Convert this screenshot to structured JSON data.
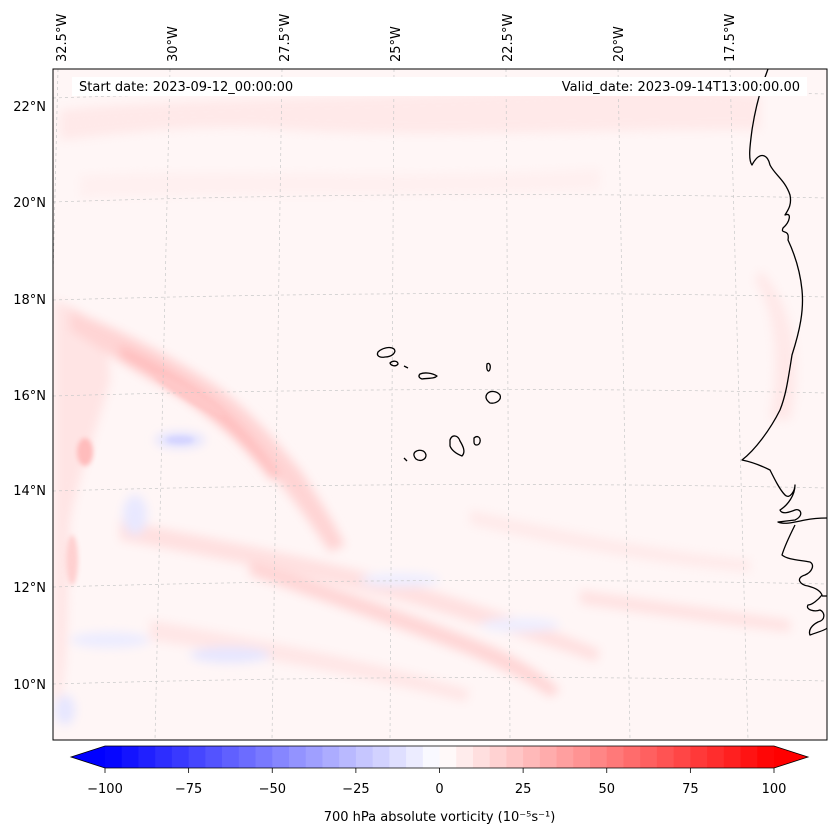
{
  "header": {
    "start_date": "Start date: 2023-09-12_00:00:00",
    "valid_date": "Valid_date: 2023-09-14T13:00:00.00"
  },
  "axes": {
    "lon_labels": [
      "32.5°W",
      "30°W",
      "27.5°W",
      "25°W",
      "22.5°W",
      "20°W",
      "17.5°W"
    ],
    "lat_labels": [
      "22°N",
      "20°N",
      "18°N",
      "16°N",
      "14°N",
      "12°N",
      "10°N"
    ]
  },
  "colorbar": {
    "label": "700 hPa absolute vorticity (10⁻⁵s⁻¹)",
    "ticks": [
      "−100",
      "−75",
      "−50",
      "−25",
      "0",
      "25",
      "50",
      "75",
      "100"
    ],
    "range": [
      -100,
      100
    ],
    "step": 5,
    "cmap": "bwr"
  },
  "colors": {
    "coast": "#000000",
    "grid": "#c8c8c8",
    "field_bg": "#fff6f6"
  }
}
